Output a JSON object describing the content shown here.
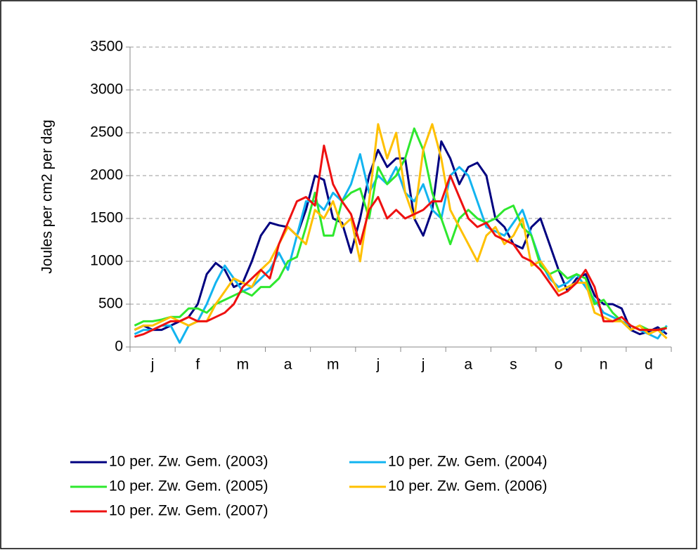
{
  "chart_data": {
    "type": "line",
    "y_label": "Joules per cm2 per dag",
    "categories": [
      null,
      null,
      "j",
      null,
      null,
      null,
      null,
      "f",
      null,
      null,
      null,
      null,
      "m",
      null,
      null,
      null,
      null,
      "a",
      null,
      null,
      null,
      null,
      "m",
      null,
      null,
      null,
      null,
      "j",
      null,
      null,
      null,
      null,
      "j",
      null,
      null,
      null,
      null,
      "a",
      null,
      null,
      null,
      null,
      "s",
      null,
      null,
      null,
      null,
      "o",
      null,
      null,
      null,
      null,
      "n",
      null,
      null,
      null,
      null,
      "d",
      null,
      null
    ],
    "ylim": [
      0,
      3500
    ],
    "yticks": [
      0,
      500,
      1000,
      1500,
      2000,
      2500,
      3000,
      3500
    ],
    "grid": true,
    "series": [
      {
        "name": "10 per. Zw. Gem. (2003)",
        "color": "#000080",
        "values": [
          200,
          250,
          200,
          200,
          250,
          300,
          350,
          500,
          850,
          980,
          900,
          700,
          750,
          1000,
          1300,
          1450,
          1420,
          1400,
          1300,
          1600,
          2000,
          1950,
          1500,
          1450,
          1100,
          1500,
          2000,
          2300,
          2100,
          2200,
          2200,
          1500,
          1300,
          1600,
          2400,
          2200,
          1900,
          2100,
          2150,
          2000,
          1500,
          1400,
          1200,
          1150,
          1400,
          1500,
          1200,
          900,
          650,
          800,
          850,
          600,
          500,
          500,
          450,
          200,
          150,
          180,
          230,
          150
        ]
      },
      {
        "name": "10 per. Zw. Gem. (2004)",
        "color": "#12b4f0",
        "values": [
          150,
          200,
          200,
          250,
          250,
          50,
          250,
          300,
          500,
          750,
          950,
          800,
          650,
          700,
          800,
          900,
          1100,
          900,
          1300,
          1700,
          1700,
          1600,
          1800,
          1700,
          1900,
          2250,
          1800,
          2000,
          1900,
          2100,
          1800,
          1700,
          1900,
          1600,
          1500,
          2000,
          2100,
          2000,
          1700,
          1400,
          1350,
          1300,
          1450,
          1600,
          1300,
          1000,
          800,
          700,
          750,
          850,
          700,
          550,
          400,
          350,
          300,
          250,
          200,
          150,
          100,
          250
        ]
      },
      {
        "name": "10 per. Zw. Gem. (2005)",
        "color": "#2ee82e",
        "values": [
          250,
          300,
          300,
          320,
          350,
          350,
          450,
          450,
          400,
          500,
          550,
          600,
          650,
          600,
          700,
          700,
          800,
          1000,
          1050,
          1400,
          1800,
          1300,
          1300,
          1700,
          1800,
          1850,
          1500,
          2100,
          1900,
          2000,
          2200,
          2550,
          2300,
          1800,
          1500,
          1200,
          1500,
          1600,
          1500,
          1450,
          1500,
          1600,
          1650,
          1400,
          1300,
          950,
          850,
          900,
          800,
          850,
          800,
          500,
          550,
          400,
          300,
          200,
          250,
          200,
          200,
          230
        ]
      },
      {
        "name": "10 per. Zw. Gem. (2006)",
        "color": "#ffc000",
        "values": [
          200,
          250,
          250,
          300,
          350,
          300,
          250,
          300,
          300,
          500,
          650,
          800,
          750,
          700,
          900,
          1000,
          1200,
          1400,
          1300,
          1200,
          1600,
          1500,
          1700,
          1400,
          1500,
          1000,
          1700,
          2600,
          2200,
          2500,
          1800,
          1500,
          2300,
          2600,
          2200,
          1600,
          1400,
          1200,
          1000,
          1300,
          1400,
          1200,
          1300,
          1500,
          950,
          1000,
          850,
          650,
          700,
          750,
          750,
          400,
          350,
          300,
          300,
          200,
          250,
          150,
          200,
          100
        ]
      },
      {
        "name": "10 per. Zw. Gem. (2007)",
        "color": "#ee1111",
        "values": [
          120,
          150,
          200,
          250,
          300,
          300,
          350,
          300,
          300,
          350,
          400,
          500,
          700,
          800,
          900,
          800,
          1200,
          1450,
          1700,
          1750,
          1650,
          2350,
          1900,
          1700,
          1550,
          1200,
          1600,
          1750,
          1500,
          1600,
          1500,
          1550,
          1600,
          1700,
          1700,
          2000,
          1750,
          1500,
          1400,
          1450,
          1300,
          1250,
          1200,
          1050,
          1000,
          900,
          750,
          600,
          650,
          750,
          900,
          700,
          300,
          300,
          350,
          250,
          200,
          200,
          200,
          220
        ]
      }
    ]
  }
}
